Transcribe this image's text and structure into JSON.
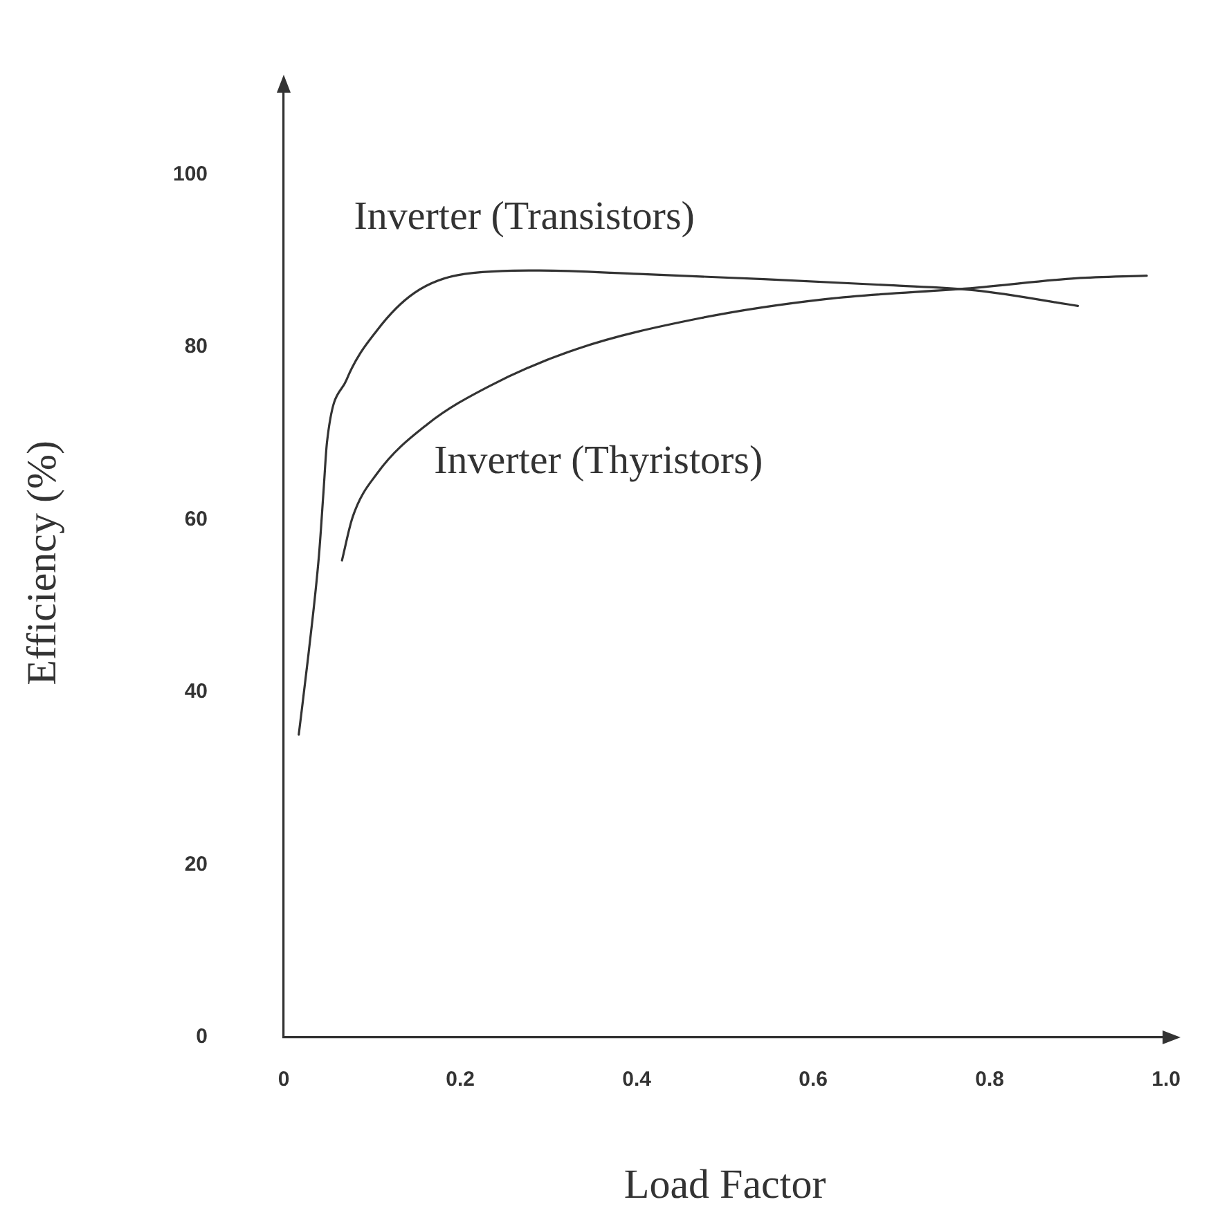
{
  "chart_data": {
    "type": "line",
    "xlabel": "Load Factor",
    "ylabel": "Efficiency (%)",
    "xlim": [
      0,
      1.0
    ],
    "xticks": [
      {
        "value": 0,
        "label": "0"
      },
      0.2,
      0.4,
      0.6,
      0.8,
      {
        "value": 1.0,
        "label": "1.0"
      }
    ],
    "ylim": [
      0,
      110
    ],
    "yticks": [
      0,
      20,
      40,
      60,
      80,
      100
    ],
    "grid": false,
    "legend": false,
    "marker": "none",
    "line_style": "solid",
    "series": [
      {
        "name": "Inverter (Transistors)",
        "color": "#333333",
        "x": [
          0.017,
          0.028,
          0.04,
          0.045,
          0.049,
          0.071,
          0.106,
          0.148,
          0.205,
          0.29,
          0.403,
          0.544,
          0.686,
          0.784,
          0.9
        ],
        "values": [
          35.1,
          44.4,
          56.0,
          63.2,
          69.0,
          76.2,
          82.0,
          86.3,
          88.5,
          88.9,
          88.5,
          87.9,
          87.2,
          86.6,
          84.8
        ]
      },
      {
        "name": "Inverter (Thyristors)",
        "color": "#333333",
        "x": [
          0.066,
          0.078,
          0.106,
          0.163,
          0.233,
          0.332,
          0.473,
          0.615,
          0.784,
          0.898,
          0.978
        ],
        "values": [
          55.3,
          60.3,
          65.4,
          71.1,
          75.5,
          79.8,
          83.4,
          85.6,
          86.9,
          88.0,
          88.3
        ]
      }
    ]
  }
}
